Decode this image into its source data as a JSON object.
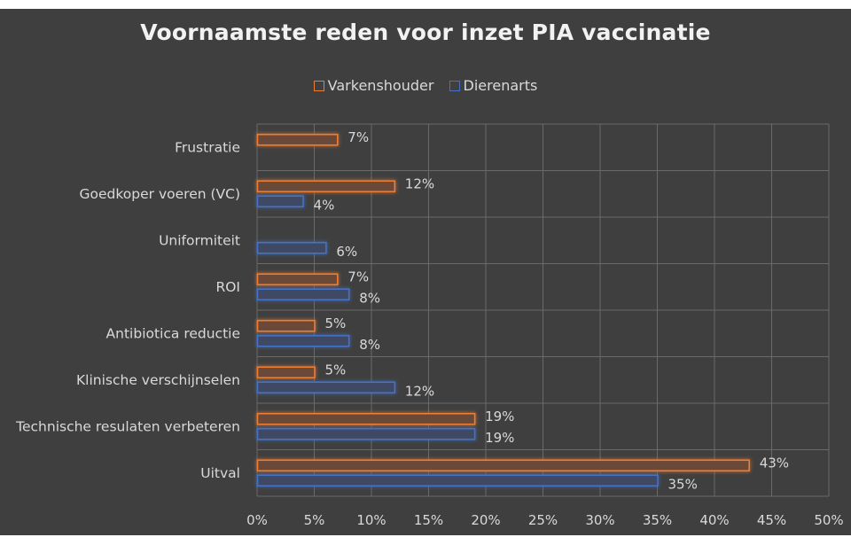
{
  "colors": {
    "background": "#3f3f3f",
    "grid": "#6a6a6a",
    "varkenshouder": "#ed7d31",
    "varkenshouder_fill": "#6b4a37",
    "dierenarts": "#4472c4",
    "dierenarts_fill": "#3f4a63"
  },
  "chart_data": {
    "type": "bar",
    "orientation": "horizontal",
    "title": "Voornaamste reden voor inzet PIA vaccinatie",
    "categories": [
      "Frustratie",
      "Goedkoper voeren (VC)",
      "Uniformiteit",
      "ROI",
      "Antibiotica reductie",
      "Klinische verschijnselen",
      "Technische resulaten verbeteren",
      "Uitval"
    ],
    "series": [
      {
        "name": "Varkenshouder",
        "values": [
          7,
          12,
          null,
          7,
          5,
          5,
          19,
          43
        ],
        "labels": [
          "7%",
          "12%",
          "",
          "7%",
          "5%",
          "5%",
          "19%",
          "43%"
        ]
      },
      {
        "name": "Dierenarts",
        "values": [
          null,
          4,
          6,
          8,
          8,
          12,
          19,
          35
        ],
        "labels": [
          "",
          "4%",
          "6%",
          "8%",
          "8%",
          "12%",
          "19%",
          "35%"
        ]
      }
    ],
    "xlim": [
      0,
      50
    ],
    "xticks": [
      "0%",
      "5%",
      "10%",
      "15%",
      "20%",
      "25%",
      "30%",
      "35%",
      "40%",
      "45%",
      "50%"
    ],
    "xlabel": "",
    "ylabel": "",
    "grid": true,
    "legend": "top-center"
  }
}
